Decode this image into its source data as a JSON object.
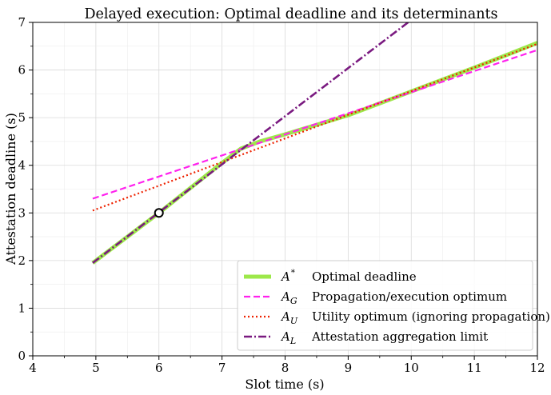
{
  "chart_data": {
    "type": "line",
    "title": "Delayed execution: Optimal deadline and its determinants",
    "xlabel": "Slot time (s)",
    "ylabel": "Attestation deadline (s)",
    "xlim": [
      4,
      12
    ],
    "ylim": [
      0,
      7
    ],
    "xticks": [
      "4",
      "5",
      "6",
      "7",
      "8",
      "9",
      "10",
      "11",
      "12"
    ],
    "yticks": [
      "0",
      "1",
      "2",
      "3",
      "4",
      "5",
      "6",
      "7"
    ],
    "grid": true,
    "legend_position": "bottom-right",
    "series": [
      {
        "key": "A*",
        "symbol": "A",
        "superscript": "*",
        "name": "Optimal deadline",
        "color": "#9de84a",
        "style": "solid-thick",
        "x": [
          4.95,
          6,
          7.0,
          7.3,
          7.6,
          8,
          9,
          10,
          11,
          12
        ],
        "y": [
          1.95,
          3.0,
          4.05,
          4.35,
          4.5,
          4.65,
          5.05,
          5.55,
          6.05,
          6.57
        ]
      },
      {
        "key": "A_G",
        "symbol": "A",
        "subscript": "G",
        "name": "Propagation/execution optimum",
        "color": "#ff22ee",
        "style": "dashed",
        "x": [
          4.95,
          12
        ],
        "y": [
          3.3,
          6.42
        ]
      },
      {
        "key": "A_U",
        "symbol": "A",
        "subscript": "U",
        "name": "Utility optimum (ignoring propagation)",
        "color": "#ee2200",
        "style": "dotted",
        "x": [
          4.95,
          12
        ],
        "y": [
          3.05,
          6.55
        ]
      },
      {
        "key": "A_L",
        "symbol": "A",
        "subscript": "L",
        "name": "Attestation aggregation limit",
        "color": "#7a1a80",
        "style": "dashdot",
        "x": [
          4.95,
          9.95
        ],
        "y": [
          1.95,
          7.0
        ]
      }
    ],
    "marker": {
      "x": 6,
      "y": 3.0
    }
  }
}
